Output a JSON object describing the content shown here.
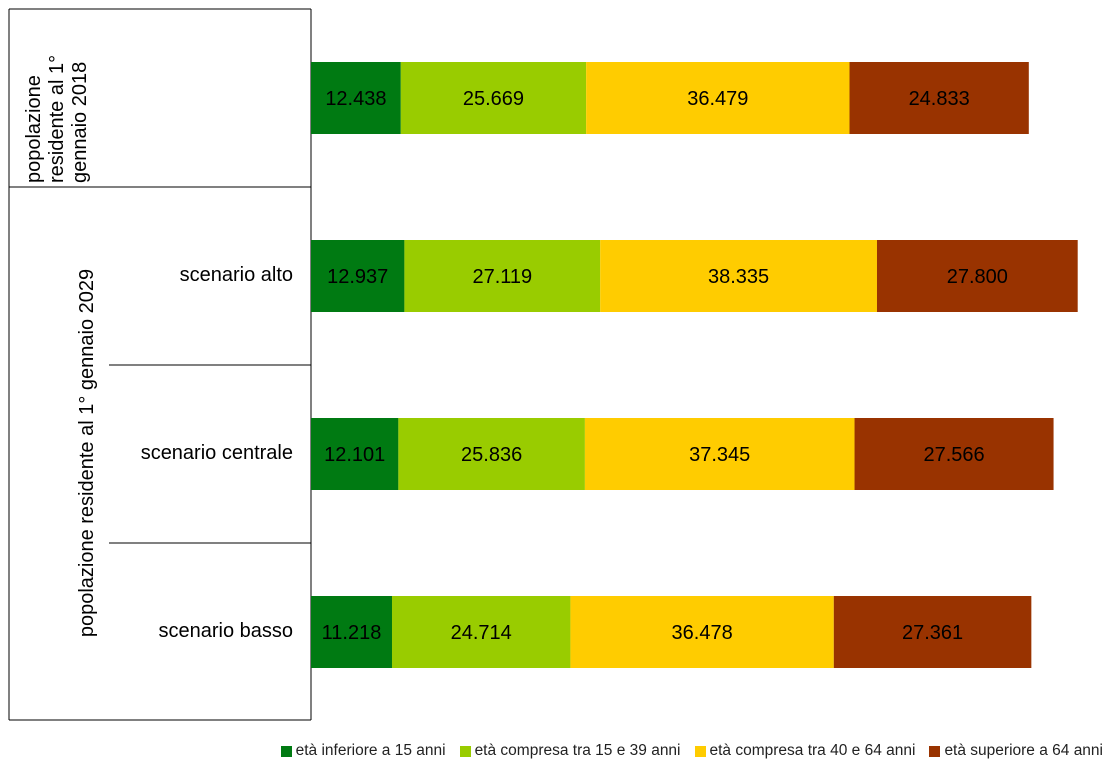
{
  "chart_data": {
    "type": "bar",
    "orientation": "horizontal",
    "stacked": true,
    "groups": [
      {
        "label_lines": [
          "popolazione",
          "residente al 1°",
          "gennaio 2018"
        ],
        "rows": [
          ""
        ]
      },
      {
        "label": "popolazione residente al 1° gennaio 2029",
        "rows": [
          "scenario alto",
          "scenario centrale",
          "scenario basso"
        ]
      }
    ],
    "categories": [
      "",
      "scenario alto",
      "scenario centrale",
      "scenario basso"
    ],
    "series": [
      {
        "name": "età inferiore a 15 anni",
        "color": "#007a12",
        "values": [
          12438,
          12937,
          12101,
          11218
        ],
        "labels": [
          "12.438",
          "12.937",
          "12.101",
          "11.218"
        ]
      },
      {
        "name": "età compresa tra 15 e 39 anni",
        "color": "#99cc00",
        "values": [
          25669,
          27119,
          25836,
          24714
        ],
        "labels": [
          "25.669",
          "27.119",
          "25.836",
          "24.714"
        ]
      },
      {
        "name": "età compresa tra 40 e 64 anni",
        "color": "#ffcc00",
        "values": [
          36479,
          38335,
          37345,
          36478
        ],
        "labels": [
          "36.479",
          "38.335",
          "37.345",
          "36.478"
        ]
      },
      {
        "name": "età superiore a 64 anni",
        "color": "#993300",
        "values": [
          24833,
          27800,
          27566,
          27361
        ],
        "labels": [
          "24.833",
          "27.800",
          "27.566",
          "27.361"
        ]
      }
    ],
    "legend_position": "bottom-right",
    "grid": false,
    "xlim": [
      0,
      106000
    ]
  }
}
